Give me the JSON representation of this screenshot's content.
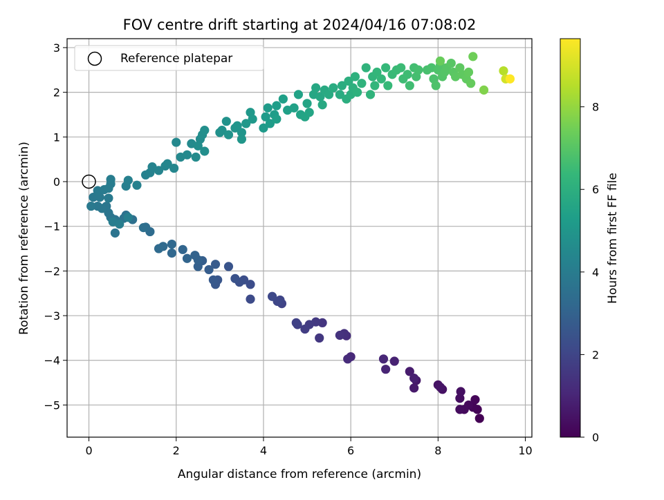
{
  "chart_data": {
    "type": "scatter",
    "title": "FOV centre drift starting at 2024/04/16 07:08:02",
    "xlabel": "Angular distance from reference (arcmin)",
    "ylabel": "Rotation from reference (arcmin)",
    "xlim": [
      -0.5,
      10.15
    ],
    "ylim": [
      -5.72,
      3.2
    ],
    "xticks": [
      "0",
      "2",
      "4",
      "6",
      "8",
      "10"
    ],
    "xtick_values": [
      0,
      2,
      4,
      6,
      8,
      10
    ],
    "yticks": [
      "−5",
      "−4",
      "−3",
      "−2",
      "−1",
      "0",
      "1",
      "2",
      "3"
    ],
    "ytick_values": [
      -5,
      -4,
      -3,
      -2,
      -1,
      0,
      1,
      2,
      3
    ],
    "grid": true,
    "legend": {
      "position": "upper-left",
      "label": "Reference platepar"
    },
    "reference_point": {
      "x": 0,
      "y": 0
    },
    "colorbar": {
      "label": "Hours from first FF file",
      "range": [
        0,
        9.65
      ],
      "ticks": [
        "0",
        "2",
        "4",
        "6",
        "8"
      ],
      "tick_values": [
        0,
        2,
        4,
        6,
        8
      ],
      "colormap": [
        "#440154",
        "#482878",
        "#3e4989",
        "#31688e",
        "#26828e",
        "#1f9e89",
        "#35b779",
        "#6ece58",
        "#b5de2b",
        "#fde725"
      ]
    },
    "series": [
      {
        "points": [
          [
            8.95,
            -5.3,
            0.0
          ],
          [
            8.9,
            -5.1,
            0.05
          ],
          [
            8.8,
            -5.05,
            0.1
          ],
          [
            8.85,
            -4.88,
            0.15
          ],
          [
            8.7,
            -5.0,
            0.2
          ],
          [
            8.6,
            -5.1,
            0.25
          ],
          [
            8.5,
            -5.1,
            0.3
          ],
          [
            8.5,
            -4.85,
            0.35
          ],
          [
            8.52,
            -4.7,
            0.4
          ],
          [
            8.1,
            -4.65,
            0.45
          ],
          [
            8.0,
            -4.55,
            0.5
          ],
          [
            8.05,
            -4.6,
            0.55
          ],
          [
            7.5,
            -4.45,
            0.62
          ],
          [
            7.45,
            -4.62,
            0.68
          ],
          [
            7.35,
            -4.25,
            0.75
          ],
          [
            7.45,
            -4.4,
            0.82
          ],
          [
            7.0,
            -4.02,
            0.9
          ],
          [
            6.8,
            -4.2,
            0.98
          ],
          [
            6.75,
            -3.97,
            1.05
          ],
          [
            6.0,
            -3.92,
            1.12
          ],
          [
            5.93,
            -3.97,
            1.2
          ],
          [
            5.9,
            -3.45,
            1.28
          ],
          [
            5.85,
            -3.4,
            1.35
          ],
          [
            5.75,
            -3.44,
            1.42
          ],
          [
            5.35,
            -3.16,
            1.5
          ],
          [
            5.28,
            -3.5,
            1.57
          ],
          [
            5.2,
            -3.14,
            1.64
          ],
          [
            5.05,
            -3.2,
            1.7
          ],
          [
            4.95,
            -3.3,
            1.76
          ],
          [
            4.78,
            -3.2,
            1.82
          ],
          [
            4.75,
            -3.16,
            1.88
          ],
          [
            4.42,
            -2.73,
            1.95
          ],
          [
            4.38,
            -2.65,
            2.02
          ],
          [
            4.32,
            -2.68,
            2.08
          ],
          [
            4.2,
            -2.57,
            2.15
          ],
          [
            3.7,
            -2.63,
            2.22
          ],
          [
            3.7,
            -2.3,
            2.28
          ],
          [
            3.55,
            -2.2,
            2.34
          ],
          [
            3.45,
            -2.25,
            2.4
          ],
          [
            3.35,
            -2.17,
            2.46
          ],
          [
            3.2,
            -1.9,
            2.52
          ],
          [
            2.95,
            -2.2,
            2.58
          ],
          [
            2.9,
            -2.3,
            2.64
          ],
          [
            2.85,
            -2.2,
            2.7
          ],
          [
            2.9,
            -1.85,
            2.76
          ],
          [
            2.75,
            -1.97,
            2.82
          ],
          [
            2.6,
            -1.77,
            2.88
          ],
          [
            2.5,
            -1.9,
            2.94
          ],
          [
            2.5,
            -1.75,
            3.0
          ],
          [
            2.43,
            -1.65,
            3.05
          ],
          [
            2.25,
            -1.72,
            3.1
          ],
          [
            2.15,
            -1.52,
            3.15
          ],
          [
            1.9,
            -1.6,
            3.2
          ],
          [
            1.9,
            -1.4,
            3.25
          ],
          [
            1.7,
            -1.45,
            3.3
          ],
          [
            1.6,
            -1.5,
            3.35
          ],
          [
            1.4,
            -1.12,
            3.4
          ],
          [
            1.3,
            -1.02,
            3.45
          ],
          [
            1.25,
            -1.03,
            3.5
          ],
          [
            1.0,
            -0.85,
            3.55
          ],
          [
            0.85,
            -0.75,
            3.6
          ],
          [
            0.8,
            -0.82,
            3.65
          ],
          [
            0.6,
            -0.85,
            3.7
          ],
          [
            0.6,
            -1.15,
            3.72
          ],
          [
            0.5,
            -0.8,
            3.75
          ],
          [
            0.45,
            -0.7,
            3.77
          ],
          [
            0.4,
            -0.55,
            3.8
          ],
          [
            0.3,
            -0.6,
            3.82
          ],
          [
            0.2,
            -0.55,
            3.85
          ],
          [
            0.1,
            -0.35,
            3.87
          ],
          [
            0.05,
            -0.55,
            3.9
          ],
          [
            0.25,
            -0.35,
            3.92
          ],
          [
            0.45,
            -0.37,
            3.95
          ],
          [
            0.2,
            -0.2,
            3.97
          ],
          [
            0.35,
            -0.18,
            4.0
          ],
          [
            0.45,
            -0.15,
            4.03
          ],
          [
            0.5,
            -0.05,
            4.05
          ],
          [
            0.5,
            0.05,
            4.08
          ],
          [
            0.55,
            -0.9,
            4.1
          ],
          [
            0.7,
            -0.95,
            4.12
          ],
          [
            0.9,
            -0.8,
            4.15
          ],
          [
            0.85,
            -0.1,
            4.18
          ],
          [
            0.9,
            0.03,
            4.2
          ],
          [
            1.1,
            -0.08,
            4.23
          ],
          [
            1.3,
            0.15,
            4.26
          ],
          [
            1.4,
            0.2,
            4.3
          ],
          [
            1.45,
            0.33,
            4.33
          ],
          [
            1.6,
            0.25,
            4.36
          ],
          [
            1.75,
            0.35,
            4.4
          ],
          [
            1.8,
            0.4,
            4.43
          ],
          [
            1.95,
            0.3,
            4.46
          ],
          [
            2.1,
            0.55,
            4.5
          ],
          [
            2.0,
            0.88,
            4.53
          ],
          [
            2.25,
            0.6,
            4.56
          ],
          [
            2.35,
            0.85,
            4.6
          ],
          [
            2.45,
            0.55,
            4.63
          ],
          [
            2.55,
            0.95,
            4.66
          ],
          [
            2.5,
            0.8,
            4.7
          ],
          [
            2.65,
            0.68,
            4.73
          ],
          [
            2.6,
            1.05,
            4.76
          ],
          [
            2.65,
            1.15,
            4.8
          ],
          [
            3.0,
            1.1,
            4.83
          ],
          [
            3.05,
            1.15,
            4.86
          ],
          [
            3.15,
            1.35,
            4.9
          ],
          [
            3.2,
            1.05,
            4.93
          ],
          [
            3.35,
            1.2,
            4.96
          ],
          [
            3.4,
            1.25,
            5.0
          ],
          [
            3.5,
            1.1,
            5.03
          ],
          [
            3.5,
            0.95,
            5.06
          ],
          [
            3.6,
            1.3,
            5.1
          ],
          [
            3.7,
            1.55,
            5.13
          ],
          [
            3.75,
            1.4,
            5.16
          ],
          [
            4.0,
            1.2,
            5.2
          ],
          [
            4.05,
            1.45,
            5.23
          ],
          [
            4.1,
            1.65,
            5.26
          ],
          [
            4.15,
            1.3,
            5.3
          ],
          [
            4.25,
            1.5,
            5.33
          ],
          [
            4.3,
            1.7,
            5.36
          ],
          [
            4.3,
            1.4,
            5.4
          ],
          [
            4.45,
            1.85,
            5.43
          ],
          [
            4.55,
            1.6,
            5.46
          ],
          [
            4.7,
            1.65,
            5.5
          ],
          [
            4.8,
            1.95,
            5.53
          ],
          [
            4.85,
            1.5,
            5.56
          ],
          [
            4.95,
            1.45,
            5.6
          ],
          [
            5.0,
            1.75,
            5.63
          ],
          [
            5.05,
            1.55,
            5.66
          ],
          [
            5.15,
            1.95,
            5.7
          ],
          [
            5.2,
            2.1,
            5.73
          ],
          [
            5.3,
            1.9,
            5.76
          ],
          [
            5.35,
            1.72,
            5.8
          ],
          [
            5.4,
            2.05,
            5.83
          ],
          [
            5.5,
            1.95,
            5.86
          ],
          [
            5.6,
            2.1,
            5.9
          ],
          [
            5.75,
            1.95,
            5.93
          ],
          [
            5.8,
            2.15,
            5.96
          ],
          [
            5.9,
            1.85,
            6.0
          ],
          [
            5.95,
            2.25,
            6.03
          ],
          [
            6.0,
            1.95,
            6.06
          ],
          [
            6.05,
            2.1,
            6.1
          ],
          [
            6.1,
            2.35,
            6.13
          ],
          [
            6.15,
            2.0,
            6.16
          ],
          [
            6.25,
            2.2,
            6.2
          ],
          [
            6.35,
            2.55,
            6.23
          ],
          [
            6.45,
            1.95,
            6.26
          ],
          [
            6.5,
            2.35,
            6.3
          ],
          [
            6.55,
            2.15,
            6.33
          ],
          [
            6.6,
            2.45,
            6.36
          ],
          [
            6.7,
            2.3,
            6.4
          ],
          [
            6.8,
            2.55,
            6.43
          ],
          [
            6.85,
            2.15,
            6.46
          ],
          [
            6.95,
            2.4,
            6.5
          ],
          [
            7.05,
            2.5,
            6.53
          ],
          [
            7.15,
            2.55,
            6.56
          ],
          [
            7.2,
            2.3,
            6.6
          ],
          [
            7.3,
            2.4,
            6.63
          ],
          [
            7.35,
            2.15,
            6.66
          ],
          [
            7.45,
            2.55,
            6.7
          ],
          [
            7.5,
            2.35,
            6.73
          ],
          [
            7.55,
            2.5,
            6.76
          ],
          [
            7.75,
            2.5,
            6.8
          ],
          [
            7.85,
            2.55,
            6.83
          ],
          [
            7.9,
            2.3,
            6.86
          ],
          [
            7.95,
            2.15,
            6.9
          ],
          [
            8.0,
            2.5,
            6.93
          ],
          [
            8.05,
            2.6,
            6.96
          ],
          [
            8.1,
            2.35,
            7.0
          ],
          [
            8.15,
            2.45,
            7.03
          ],
          [
            8.2,
            2.55,
            7.06
          ],
          [
            8.3,
            2.65,
            7.1
          ],
          [
            8.35,
            2.45,
            7.13
          ],
          [
            8.4,
            2.35,
            7.16
          ],
          [
            8.5,
            2.55,
            7.2
          ],
          [
            8.55,
            2.4,
            7.23
          ],
          [
            8.65,
            2.3,
            7.26
          ],
          [
            8.7,
            2.45,
            7.3
          ],
          [
            8.75,
            2.2,
            7.33
          ],
          [
            8.05,
            2.7,
            7.4
          ],
          [
            8.8,
            2.8,
            7.5
          ],
          [
            9.05,
            2.05,
            7.8
          ],
          [
            9.5,
            2.48,
            8.6
          ],
          [
            9.55,
            2.3,
            9.0
          ],
          [
            9.65,
            2.3,
            9.65
          ]
        ]
      }
    ]
  }
}
